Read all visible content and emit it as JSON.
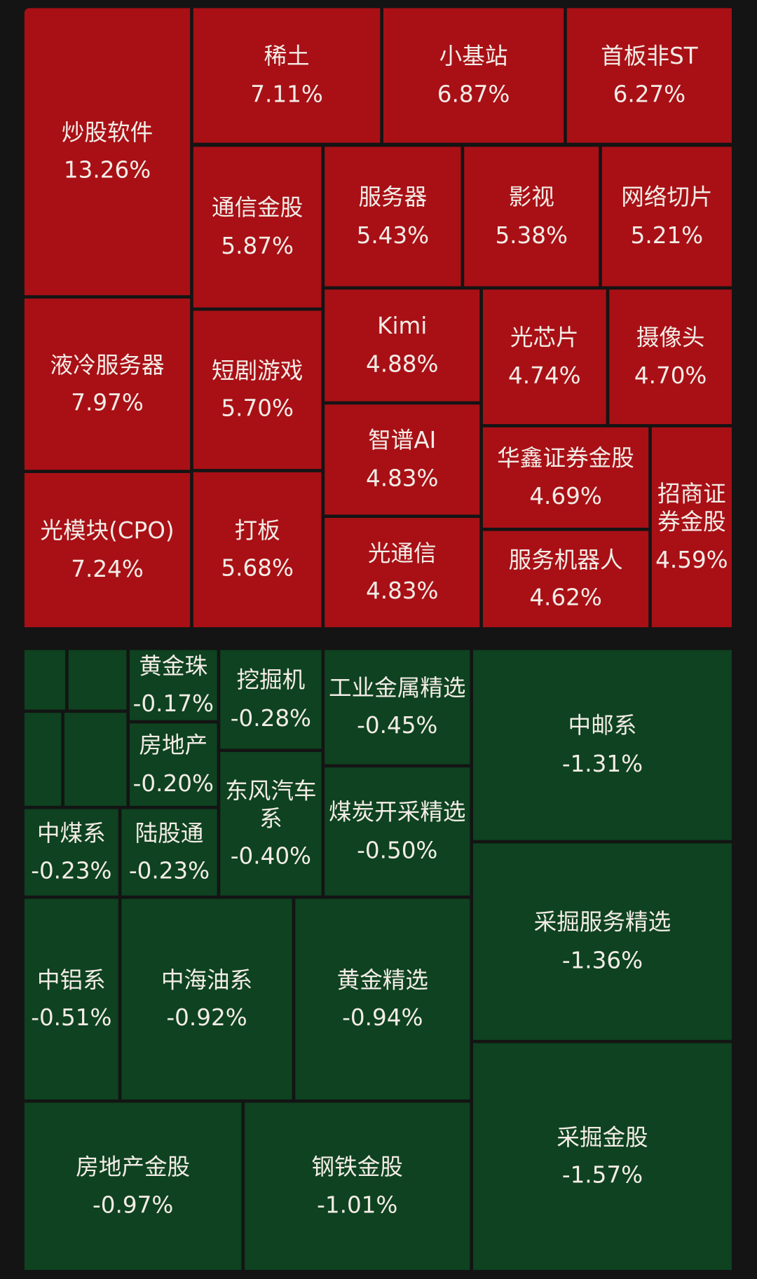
{
  "chart_data": {
    "type": "heatmap",
    "subtype": "treemap",
    "colors": {
      "up": "#a81016",
      "down": "#0e4220",
      "background": "#141414"
    },
    "gainers": [
      {
        "name": "炒股软件",
        "pct": "13.26%"
      },
      {
        "name": "液冷服务器",
        "pct": "7.97%"
      },
      {
        "name": "光模块(CPO)",
        "pct": "7.24%"
      },
      {
        "name": "稀土",
        "pct": "7.11%"
      },
      {
        "name": "小基站",
        "pct": "6.87%"
      },
      {
        "name": "首板非ST",
        "pct": "6.27%"
      },
      {
        "name": "通信金股",
        "pct": "5.87%"
      },
      {
        "name": "服务器",
        "pct": "5.43%"
      },
      {
        "name": "影视",
        "pct": "5.38%"
      },
      {
        "name": "网络切片",
        "pct": "5.21%"
      },
      {
        "name": "短剧游戏",
        "pct": "5.70%"
      },
      {
        "name": "打板",
        "pct": "5.68%"
      },
      {
        "name": "Kimi",
        "pct": "4.88%"
      },
      {
        "name": "智谱AI",
        "pct": "4.83%"
      },
      {
        "name": "光通信",
        "pct": "4.83%"
      },
      {
        "name": "光芯片",
        "pct": "4.74%"
      },
      {
        "name": "摄像头",
        "pct": "4.70%"
      },
      {
        "name": "华鑫证券金股",
        "pct": "4.69%"
      },
      {
        "name": "服务机器人",
        "pct": "4.62%"
      },
      {
        "name": "招商证券金股",
        "pct": "4.59%"
      }
    ],
    "losers": [
      {
        "name": "",
        "pct": ""
      },
      {
        "name": "",
        "pct": ""
      },
      {
        "name": "",
        "pct": ""
      },
      {
        "name": "",
        "pct": ""
      },
      {
        "name": "黄金珠",
        "pct": "-0.17%"
      },
      {
        "name": "房地产",
        "pct": "-0.20%"
      },
      {
        "name": "挖掘机",
        "pct": "-0.28%"
      },
      {
        "name": "东风汽车系",
        "pct": "-0.40%"
      },
      {
        "name": "工业金属精选",
        "pct": "-0.45%"
      },
      {
        "name": "煤炭开采精选",
        "pct": "-0.50%"
      },
      {
        "name": "中邮系",
        "pct": "-1.31%"
      },
      {
        "name": "中煤系",
        "pct": "-0.23%"
      },
      {
        "name": "陆股通",
        "pct": "-0.23%"
      },
      {
        "name": "中铝系",
        "pct": "-0.51%"
      },
      {
        "name": "中海油系",
        "pct": "-0.92%"
      },
      {
        "name": "黄金精选",
        "pct": "-0.94%"
      },
      {
        "name": "采掘服务精选",
        "pct": "-1.36%"
      },
      {
        "name": "房地产金股",
        "pct": "-0.97%"
      },
      {
        "name": "钢铁金股",
        "pct": "-1.01%"
      },
      {
        "name": "采掘金股",
        "pct": "-1.57%"
      }
    ]
  }
}
